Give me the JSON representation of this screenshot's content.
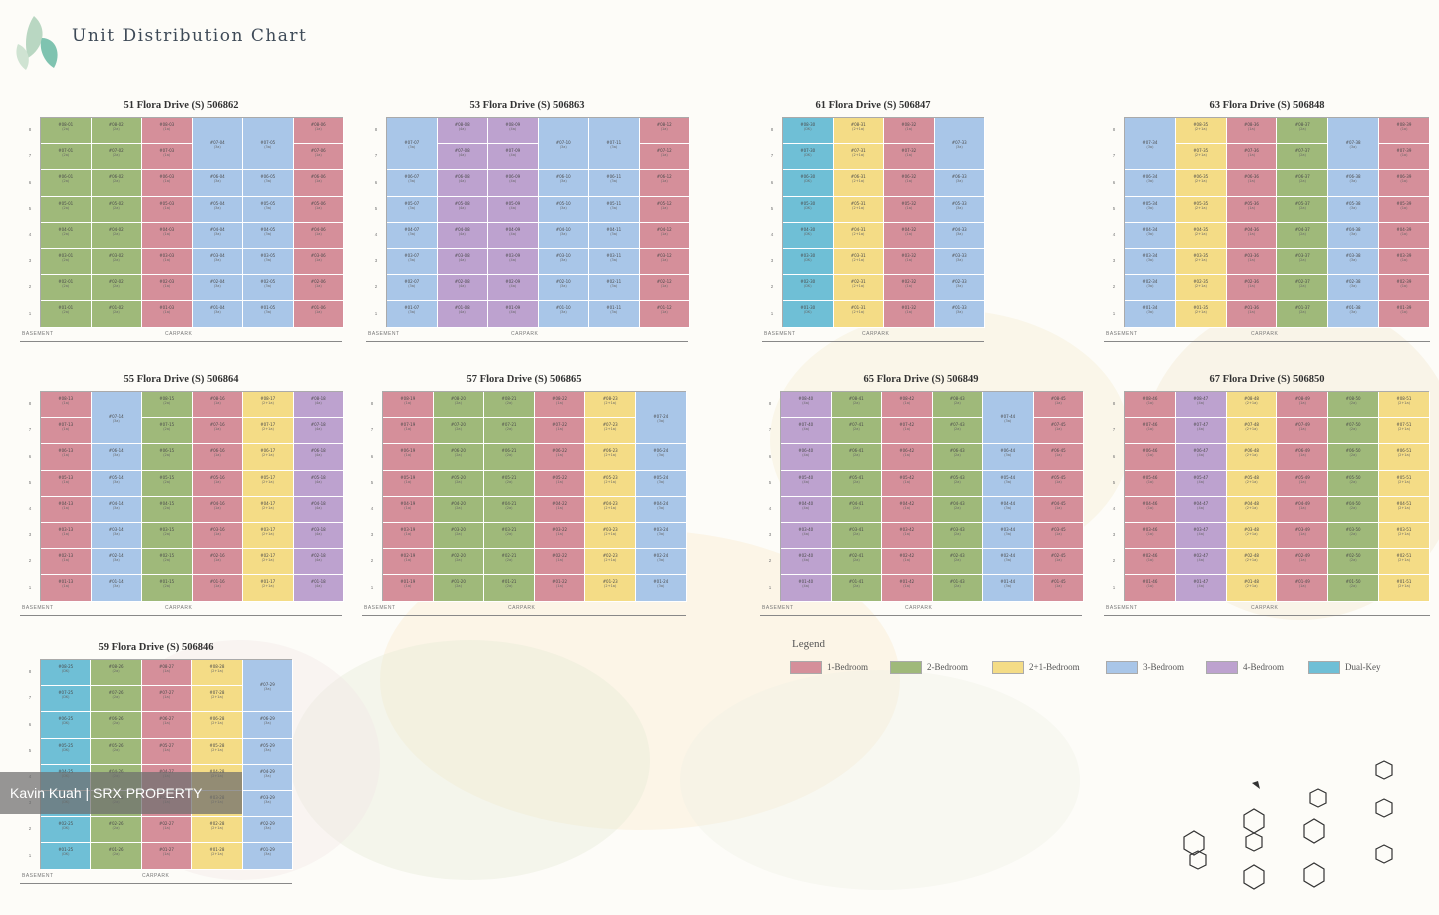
{
  "page_title": "Unit Distribution Chart",
  "colors": {
    "1-Bedroom": "#d58f9a",
    "2-Bedroom": "#9fb97a",
    "2+1-Bedroom": "#f4dc86",
    "3-Bedroom": "#a9c6e8",
    "4-Bedroom": "#bda2cf",
    "Dual-Key": "#6fbfd6"
  },
  "footer": {
    "basement": "BASEMENT",
    "carpark": "CARPARK"
  },
  "legend": {
    "title": "Legend",
    "items": [
      {
        "label": "1-Bedroom",
        "color": "#d58f9a"
      },
      {
        "label": "2-Bedroom",
        "color": "#9fb97a"
      },
      {
        "label": "2+1-Bedroom",
        "color": "#f4dc86"
      },
      {
        "label": "3-Bedroom",
        "color": "#a9c6e8"
      },
      {
        "label": "4-Bedroom",
        "color": "#bda2cf"
      },
      {
        "label": "Dual-Key",
        "color": "#6fbfd6"
      }
    ]
  },
  "watermark": "Kavin Kuah | SRX PROPERTY",
  "blocks": [
    {
      "title": "51 Flora Drive (S) 506862",
      "floors": [
        "8",
        "7",
        "6",
        "5",
        "4",
        "3",
        "2",
        "1"
      ],
      "columns": [
        {
          "type": "2-Bedroom",
          "units": [
            "#08-01",
            "#07-01",
            "#06-01",
            "#05-01",
            "#04-01",
            "#03-01",
            "#02-01",
            "#01-01"
          ],
          "code": "(2a)"
        },
        {
          "type": "2-Bedroom",
          "units": [
            "#08-02",
            "#07-02",
            "#06-02",
            "#05-02",
            "#04-02",
            "#03-02",
            "#02-02",
            "#01-02"
          ],
          "code": "(2a)"
        },
        {
          "type": "1-Bedroom",
          "units": [
            "#08-03",
            "#07-03",
            "#06-03",
            "#05-03",
            "#04-03",
            "#03-03",
            "#02-03",
            "#01-03"
          ],
          "code": "(1a)"
        },
        {
          "type": "3-Bedroom",
          "penthouse": true,
          "units": [
            "#07-04",
            "#06-04",
            "#05-04",
            "#04-04",
            "#03-04",
            "#02-04",
            "#01-04"
          ],
          "code": "(3a)"
        },
        {
          "type": "3-Bedroom",
          "penthouse": true,
          "units": [
            "#07-05",
            "#06-05",
            "#05-05",
            "#04-05",
            "#03-05",
            "#02-05",
            "#01-05"
          ],
          "code": "(3a)"
        },
        {
          "type": "1-Bedroom",
          "units": [
            "#08-06",
            "#07-06",
            "#06-06",
            "#05-06",
            "#04-06",
            "#03-06",
            "#02-06",
            "#01-06"
          ],
          "code": "(1a)"
        }
      ]
    },
    {
      "title": "53 Flora Drive (S) 506863",
      "floors": [
        "8",
        "7",
        "6",
        "5",
        "4",
        "3",
        "2",
        "1"
      ],
      "columns": [
        {
          "type": "3-Bedroom",
          "penthouse": true,
          "units": [
            "#07-07",
            "#06-07",
            "#05-07",
            "#04-07",
            "#03-07",
            "#02-07",
            "#01-07"
          ],
          "code": "(3a)"
        },
        {
          "type": "4-Bedroom",
          "units": [
            "#08-08",
            "#07-08",
            "#06-08",
            "#05-08",
            "#04-08",
            "#03-08",
            "#02-08",
            "#01-08"
          ],
          "code": "(4a)"
        },
        {
          "type": "4-Bedroom",
          "units": [
            "#08-09",
            "#07-09",
            "#06-09",
            "#05-09",
            "#04-09",
            "#03-09",
            "#02-09",
            "#01-09"
          ],
          "code": "(4a)"
        },
        {
          "type": "3-Bedroom",
          "penthouse": true,
          "units": [
            "#07-10",
            "#06-10",
            "#05-10",
            "#04-10",
            "#03-10",
            "#02-10",
            "#01-10"
          ],
          "code": "(3a)"
        },
        {
          "type": "3-Bedroom",
          "penthouse": true,
          "units": [
            "#07-11",
            "#06-11",
            "#05-11",
            "#04-11",
            "#03-11",
            "#02-11",
            "#01-11"
          ],
          "code": "(3a)"
        },
        {
          "type": "1-Bedroom",
          "units": [
            "#08-12",
            "#07-12",
            "#06-12",
            "#05-12",
            "#04-12",
            "#03-12",
            "#02-12",
            "#01-12"
          ],
          "code": "(1a)"
        }
      ]
    },
    {
      "title": "61 Flora Drive (S) 506847",
      "floors": [
        "8",
        "7",
        "6",
        "5",
        "4",
        "3",
        "2",
        "1"
      ],
      "columns": [
        {
          "type": "Dual-Key",
          "units": [
            "#08-30",
            "#07-30",
            "#06-30",
            "#05-30",
            "#04-30",
            "#03-30",
            "#02-30",
            "#01-30"
          ],
          "code": "(DK)"
        },
        {
          "type": "2+1-Bedroom",
          "units": [
            "#08-31",
            "#07-31",
            "#06-31",
            "#05-31",
            "#04-31",
            "#03-31",
            "#02-31",
            "#01-31"
          ],
          "code": "(2+1a)"
        },
        {
          "type": "1-Bedroom",
          "units": [
            "#08-32",
            "#07-32",
            "#06-32",
            "#05-32",
            "#04-32",
            "#03-32",
            "#02-32",
            "#01-32"
          ],
          "code": "(1a)"
        },
        {
          "type": "3-Bedroom",
          "penthouse": true,
          "units": [
            "#07-33",
            "#06-33",
            "#05-33",
            "#04-33",
            "#03-33",
            "#02-33",
            "#01-33"
          ],
          "code": "(3a)"
        }
      ]
    },
    {
      "title": "63 Flora Drive (S) 506848",
      "floors": [
        "8",
        "7",
        "6",
        "5",
        "4",
        "3",
        "2",
        "1"
      ],
      "columns": [
        {
          "type": "3-Bedroom",
          "penthouse": true,
          "units": [
            "#07-34",
            "#06-34",
            "#05-34",
            "#04-34",
            "#03-34",
            "#02-34",
            "#01-34"
          ],
          "code": "(3a)"
        },
        {
          "type": "2+1-Bedroom",
          "units": [
            "#08-35",
            "#07-35",
            "#06-35",
            "#05-35",
            "#04-35",
            "#03-35",
            "#02-35",
            "#01-35"
          ],
          "code": "(2+1a)"
        },
        {
          "type": "1-Bedroom",
          "units": [
            "#08-36",
            "#07-36",
            "#06-36",
            "#05-36",
            "#04-36",
            "#03-36",
            "#02-36",
            "#01-36"
          ],
          "code": "(1a)"
        },
        {
          "type": "2-Bedroom",
          "units": [
            "#08-37",
            "#07-37",
            "#06-37",
            "#05-37",
            "#04-37",
            "#03-37",
            "#02-37",
            "#01-37"
          ],
          "code": "(2a)"
        },
        {
          "type": "3-Bedroom",
          "penthouse": true,
          "units": [
            "#07-38",
            "#06-38",
            "#05-38",
            "#04-38",
            "#03-38",
            "#02-38",
            "#01-38"
          ],
          "code": "(3a)"
        },
        {
          "type": "1-Bedroom",
          "units": [
            "#08-39",
            "#07-39",
            "#06-39",
            "#05-39",
            "#04-39",
            "#03-39",
            "#02-39",
            "#01-39"
          ],
          "code": "(1a)"
        }
      ]
    },
    {
      "title": "55 Flora Drive (S) 506864",
      "floors": [
        "8",
        "7",
        "6",
        "5",
        "4",
        "3",
        "2",
        "1"
      ],
      "columns": [
        {
          "type": "1-Bedroom",
          "units": [
            "#08-13",
            "#07-13",
            "#06-13",
            "#05-13",
            "#04-13",
            "#03-13",
            "#02-13",
            "#01-13"
          ],
          "code": "(1a)"
        },
        {
          "type": "3-Bedroom",
          "penthouse": true,
          "units": [
            "#07-14",
            "#06-14",
            "#05-14",
            "#04-14",
            "#03-14",
            "#02-14",
            "#01-14"
          ],
          "code": "(3a)"
        },
        {
          "type": "2-Bedroom",
          "units": [
            "#08-15",
            "#07-15",
            "#06-15",
            "#05-15",
            "#04-15",
            "#03-15",
            "#02-15",
            "#01-15"
          ],
          "code": "(2a)"
        },
        {
          "type": "1-Bedroom",
          "units": [
            "#08-16",
            "#07-16",
            "#06-16",
            "#05-16",
            "#04-16",
            "#03-16",
            "#02-16",
            "#01-16"
          ],
          "code": "(1a)"
        },
        {
          "type": "2+1-Bedroom",
          "units": [
            "#08-17",
            "#07-17",
            "#06-17",
            "#05-17",
            "#04-17",
            "#03-17",
            "#02-17",
            "#01-17"
          ],
          "code": "(2+1a)"
        },
        {
          "type": "4-Bedroom",
          "units": [
            "#08-18",
            "#07-18",
            "#06-18",
            "#05-18",
            "#04-18",
            "#03-18",
            "#02-18",
            "#01-18"
          ],
          "code": "(4a)"
        }
      ]
    },
    {
      "title": "57 Flora Drive (S) 506865",
      "floors": [
        "8",
        "7",
        "6",
        "5",
        "4",
        "3",
        "2",
        "1"
      ],
      "columns": [
        {
          "type": "1-Bedroom",
          "units": [
            "#08-19",
            "#07-19",
            "#06-19",
            "#05-19",
            "#04-19",
            "#03-19",
            "#02-19",
            "#01-19"
          ],
          "code": "(1a)"
        },
        {
          "type": "2-Bedroom",
          "units": [
            "#08-20",
            "#07-20",
            "#06-20",
            "#05-20",
            "#04-20",
            "#03-20",
            "#02-20",
            "#01-20"
          ],
          "code": "(2a)"
        },
        {
          "type": "2-Bedroom",
          "units": [
            "#08-21",
            "#07-21",
            "#06-21",
            "#05-21",
            "#04-21",
            "#03-21",
            "#02-21",
            "#01-21"
          ],
          "code": "(2a)"
        },
        {
          "type": "1-Bedroom",
          "units": [
            "#08-22",
            "#07-22",
            "#06-22",
            "#05-22",
            "#04-22",
            "#03-22",
            "#02-22",
            "#01-22"
          ],
          "code": "(1a)"
        },
        {
          "type": "2+1-Bedroom",
          "units": [
            "#08-23",
            "#07-23",
            "#06-23",
            "#05-23",
            "#04-23",
            "#03-23",
            "#02-23",
            "#01-23"
          ],
          "code": "(2+1a)"
        },
        {
          "type": "3-Bedroom",
          "penthouse": true,
          "units": [
            "#07-24",
            "#06-24",
            "#05-24",
            "#04-24",
            "#03-24",
            "#02-24",
            "#01-24"
          ],
          "code": "(3a)"
        }
      ]
    },
    {
      "title": "65 Flora Drive (S) 506849",
      "floors": [
        "8",
        "7",
        "6",
        "5",
        "4",
        "3",
        "2",
        "1"
      ],
      "columns": [
        {
          "type": "4-Bedroom",
          "units": [
            "#08-40",
            "#07-40",
            "#06-40",
            "#05-40",
            "#04-40",
            "#03-40",
            "#02-40",
            "#01-40"
          ],
          "code": "(4a)"
        },
        {
          "type": "2-Bedroom",
          "units": [
            "#08-41",
            "#07-41",
            "#06-41",
            "#05-41",
            "#04-41",
            "#03-41",
            "#02-41",
            "#01-41"
          ],
          "code": "(2a)"
        },
        {
          "type": "1-Bedroom",
          "units": [
            "#08-42",
            "#07-42",
            "#06-42",
            "#05-42",
            "#04-42",
            "#03-42",
            "#02-42",
            "#01-42"
          ],
          "code": "(1a)"
        },
        {
          "type": "2-Bedroom",
          "units": [
            "#08-43",
            "#07-43",
            "#06-43",
            "#05-43",
            "#04-43",
            "#03-43",
            "#02-43",
            "#01-43"
          ],
          "code": "(2a)"
        },
        {
          "type": "3-Bedroom",
          "penthouse": true,
          "units": [
            "#07-44",
            "#06-44",
            "#05-44",
            "#04-44",
            "#03-44",
            "#02-44",
            "#01-44"
          ],
          "code": "(3a)"
        },
        {
          "type": "1-Bedroom",
          "units": [
            "#08-45",
            "#07-45",
            "#06-45",
            "#05-45",
            "#04-45",
            "#03-45",
            "#02-45",
            "#01-45"
          ],
          "code": "(1a)"
        }
      ]
    },
    {
      "title": "67 Flora Drive (S) 506850",
      "floors": [
        "8",
        "7",
        "6",
        "5",
        "4",
        "3",
        "2",
        "1"
      ],
      "columns": [
        {
          "type": "1-Bedroom",
          "units": [
            "#08-46",
            "#07-46",
            "#06-46",
            "#05-46",
            "#04-46",
            "#03-46",
            "#02-46",
            "#01-46"
          ],
          "code": "(1a)"
        },
        {
          "type": "4-Bedroom",
          "units": [
            "#08-47",
            "#07-47",
            "#06-47",
            "#05-47",
            "#04-47",
            "#03-47",
            "#02-47",
            "#01-47"
          ],
          "code": "(4a)"
        },
        {
          "type": "2+1-Bedroom",
          "units": [
            "#08-48",
            "#07-48",
            "#06-48",
            "#05-48",
            "#04-48",
            "#03-48",
            "#02-48",
            "#01-48"
          ],
          "code": "(2+1a)"
        },
        {
          "type": "1-Bedroom",
          "units": [
            "#08-49",
            "#07-49",
            "#06-49",
            "#05-49",
            "#04-49",
            "#03-49",
            "#02-49",
            "#01-49"
          ],
          "code": "(1a)"
        },
        {
          "type": "2-Bedroom",
          "units": [
            "#08-50",
            "#07-50",
            "#06-50",
            "#05-50",
            "#04-50",
            "#03-50",
            "#02-50",
            "#01-50"
          ],
          "code": "(2a)"
        },
        {
          "type": "2+1-Bedroom",
          "units": [
            "#08-51",
            "#07-51",
            "#06-51",
            "#05-51",
            "#04-51",
            "#03-51",
            "#02-51",
            "#01-51"
          ],
          "code": "(2+1a)"
        }
      ]
    },
    {
      "title": "59 Flora Drive (S) 506846",
      "floors": [
        "8",
        "7",
        "6",
        "5",
        "4",
        "3",
        "2",
        "1"
      ],
      "columns": [
        {
          "type": "Dual-Key",
          "units": [
            "#08-25",
            "#07-25",
            "#06-25",
            "#05-25",
            "#04-25",
            "#03-25",
            "#02-25",
            "#01-25"
          ],
          "code": "(DK)"
        },
        {
          "type": "2-Bedroom",
          "units": [
            "#08-26",
            "#07-26",
            "#06-26",
            "#05-26",
            "#04-26",
            "#03-26",
            "#02-26",
            "#01-26"
          ],
          "code": "(2a)"
        },
        {
          "type": "1-Bedroom",
          "units": [
            "#08-27",
            "#07-27",
            "#06-27",
            "#05-27",
            "#04-27",
            "#03-27",
            "#02-27",
            "#01-27"
          ],
          "code": "(1a)"
        },
        {
          "type": "2+1-Bedroom",
          "units": [
            "#08-28",
            "#07-28",
            "#06-28",
            "#05-28",
            "#04-28",
            "#03-28",
            "#02-28",
            "#01-28"
          ],
          "code": "(2+1a)"
        },
        {
          "type": "3-Bedroom",
          "penthouse": true,
          "units": [
            "#07-29",
            "#06-29",
            "#05-29",
            "#04-29",
            "#03-29",
            "#02-29",
            "#01-29"
          ],
          "code": "(3a)"
        }
      ]
    }
  ]
}
